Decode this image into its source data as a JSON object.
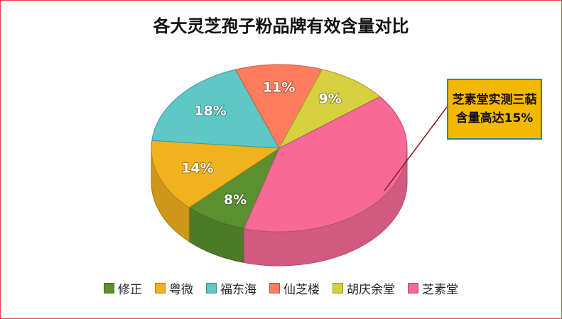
{
  "chart_data": {
    "type": "pie",
    "title": "各大灵芝孢子粉品牌有效含量对比",
    "categories": [
      "修正",
      "粤微",
      "福东海",
      "仙芝楼",
      "胡庆余堂",
      "芝素堂"
    ],
    "values": [
      8,
      14,
      18,
      11,
      9,
      40
    ],
    "value_labels": [
      "8%",
      "14%",
      "18%",
      "11%",
      "9%",
      null
    ],
    "colors": [
      "#5b8f2f",
      "#f2b21e",
      "#5ec8c6",
      "#ff7d5c",
      "#d6d03e",
      "#f76a97"
    ],
    "annotation": "芝素堂实测三萜含量高达15%",
    "legend": "bottom"
  }
}
